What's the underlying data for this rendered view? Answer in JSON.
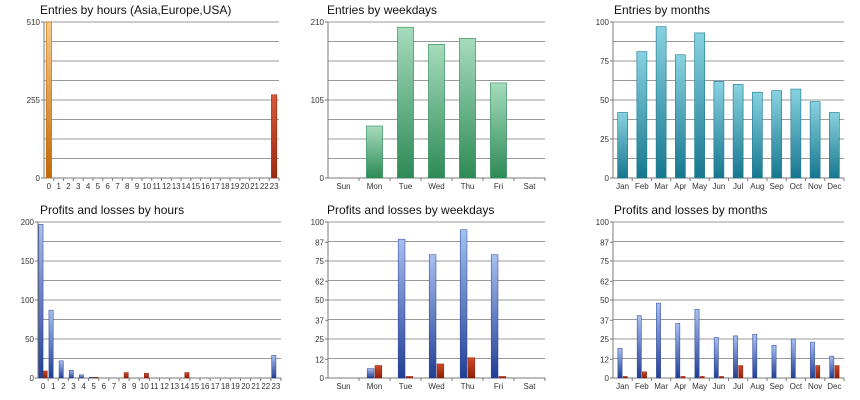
{
  "colors": {
    "grid": "#9a9a9a",
    "axis": "#7a7a7a",
    "orange_top": "#f8c98a",
    "orange_bottom": "#c06a08",
    "red_top": "#d8583a",
    "red_bottom": "#9c2a12",
    "green_top": "#a6dcbc",
    "green_bottom": "#2d8a56",
    "teal_top": "#88d2e0",
    "teal_bottom": "#17778f",
    "blue_top": "#a7bff0",
    "blue_bottom": "#223e94",
    "loss_top": "#d04a28",
    "loss_bottom": "#8c1f08"
  },
  "chart_data": [
    {
      "type": "bar",
      "title": "Entries by hours (Asia,Europe,USA)",
      "yticks": [
        "0",
        "255",
        "510"
      ],
      "ylim": [
        0,
        510
      ],
      "categories": [
        "0",
        "1",
        "2",
        "3",
        "4",
        "5",
        "6",
        "7",
        "8",
        "9",
        "10",
        "11",
        "12",
        "13",
        "14",
        "15",
        "16",
        "17",
        "18",
        "19",
        "20",
        "21",
        "22",
        "23"
      ],
      "values": [
        510,
        0,
        0,
        0,
        0,
        0,
        0,
        0,
        0,
        0,
        0,
        0,
        0,
        0,
        0,
        0,
        0,
        0,
        0,
        0,
        0,
        0,
        0,
        272
      ],
      "bar_colors": [
        "orange",
        "",
        "",
        "",
        "",
        "",
        "",
        "",
        "",
        "",
        "",
        "",
        "",
        "",
        "",
        "",
        "",
        "",
        "",
        "",
        "",
        "",
        "",
        "red"
      ]
    },
    {
      "type": "bar",
      "title": "Entries by weekdays",
      "yticks": [
        "0",
        "105",
        "210"
      ],
      "ylim": [
        0,
        210
      ],
      "categories": [
        "Sun",
        "Mon",
        "Tue",
        "Wed",
        "Thu",
        "Fri",
        "Sat"
      ],
      "values": [
        0,
        70,
        203,
        180,
        188,
        128,
        0
      ],
      "bar_colors": [
        "green",
        "green",
        "green",
        "green",
        "green",
        "green",
        "green"
      ]
    },
    {
      "type": "bar",
      "title": "Entries by months",
      "yticks": [
        "0",
        "25",
        "50",
        "75",
        "100"
      ],
      "ylim": [
        0,
        100
      ],
      "categories": [
        "Jan",
        "Feb",
        "Mar",
        "Apr",
        "May",
        "Jun",
        "Jul",
        "Aug",
        "Sep",
        "Oct",
        "Nov",
        "Dec"
      ],
      "values": [
        42,
        81,
        97,
        79,
        93,
        62,
        60,
        55,
        56,
        57,
        49,
        42
      ],
      "bar_colors": [
        "teal",
        "teal",
        "teal",
        "teal",
        "teal",
        "teal",
        "teal",
        "teal",
        "teal",
        "teal",
        "teal",
        "teal"
      ]
    },
    {
      "type": "bar",
      "title": "Profits and losses by hours",
      "yticks": [
        "0",
        "50",
        "100",
        "150",
        "200"
      ],
      "ylim": [
        0,
        200
      ],
      "categories": [
        "0",
        "1",
        "2",
        "3",
        "4",
        "5",
        "6",
        "7",
        "8",
        "9",
        "10",
        "11",
        "12",
        "13",
        "14",
        "15",
        "16",
        "17",
        "18",
        "19",
        "20",
        "21",
        "22",
        "23"
      ],
      "series": [
        {
          "values": [
            197,
            87,
            22,
            10,
            4,
            1,
            0,
            0,
            0,
            0,
            0,
            0,
            0,
            0,
            0,
            0,
            0,
            0,
            0,
            0,
            0,
            0,
            0,
            29
          ]
        },
        {
          "values": [
            9,
            0,
            0,
            0,
            0,
            1,
            0,
            0,
            7,
            0,
            6,
            0,
            0,
            0,
            7,
            0,
            0,
            0,
            0,
            0,
            0,
            0,
            0,
            0
          ]
        }
      ]
    },
    {
      "type": "bar",
      "title": "Profits and losses by weekdays",
      "yticks": [
        "0",
        "12",
        "25",
        "37",
        "50",
        "62",
        "75",
        "87",
        "100"
      ],
      "ylim": [
        0,
        100
      ],
      "categories": [
        "Sun",
        "Mon",
        "Tue",
        "Wed",
        "Thu",
        "Fri",
        "Sat"
      ],
      "series": [
        {
          "values": [
            0,
            6,
            89,
            79,
            95,
            79,
            0
          ]
        },
        {
          "values": [
            0,
            8,
            1,
            9,
            13,
            1,
            0
          ]
        }
      ]
    },
    {
      "type": "bar",
      "title": "Profits and losses by months",
      "yticks": [
        "0",
        "12",
        "25",
        "37",
        "50",
        "62",
        "75",
        "87",
        "100"
      ],
      "ylim": [
        0,
        100
      ],
      "categories": [
        "Jan",
        "Feb",
        "Mar",
        "Apr",
        "May",
        "Jun",
        "Jul",
        "Aug",
        "Sep",
        "Oct",
        "Nov",
        "Dec"
      ],
      "series": [
        {
          "values": [
            19,
            40,
            48,
            35,
            44,
            26,
            27,
            28,
            21,
            25,
            23,
            14
          ]
        },
        {
          "values": [
            1,
            4,
            0,
            1,
            1,
            1,
            8,
            0,
            0,
            0,
            8,
            8
          ]
        }
      ]
    }
  ]
}
